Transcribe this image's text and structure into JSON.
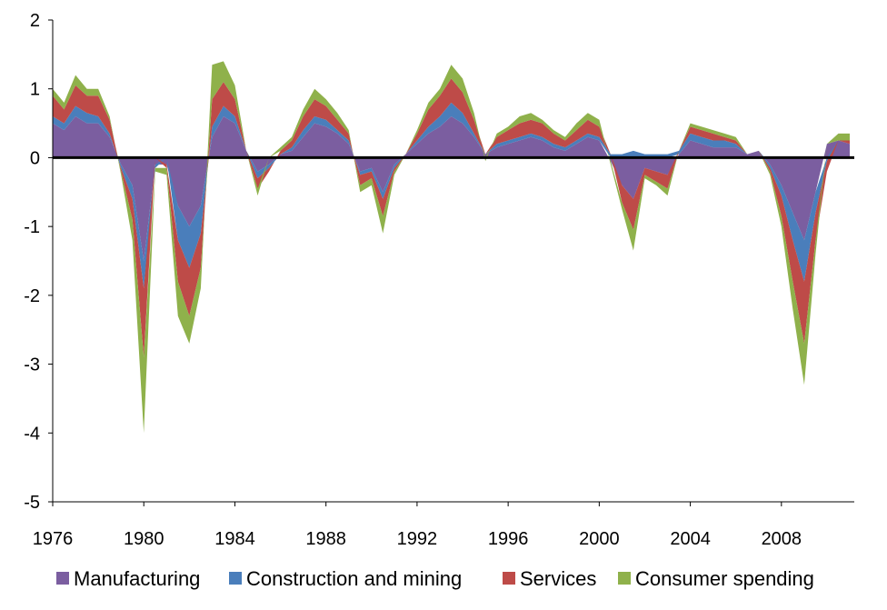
{
  "chart_data": {
    "type": "area",
    "stacked": true,
    "title": "",
    "xlabel": "",
    "ylabel": "",
    "ylim": [
      -5,
      2
    ],
    "xlim": [
      1976,
      2011.2
    ],
    "yticks": [
      "2",
      "1",
      "0",
      "-1",
      "-2",
      "-3",
      "-4",
      "-5"
    ],
    "xticks": [
      "1976",
      "1980",
      "1984",
      "1988",
      "1992",
      "1996",
      "2000",
      "2004",
      "2008"
    ],
    "grid": false,
    "legend_position": "bottom",
    "zero_line": true,
    "x": [
      1976.0,
      1976.5,
      1977.0,
      1977.5,
      1978.0,
      1978.5,
      1979.0,
      1979.5,
      1980.0,
      1980.5,
      1981.0,
      1981.5,
      1982.0,
      1982.5,
      1983.0,
      1983.5,
      1984.0,
      1984.5,
      1985.0,
      1985.5,
      1986.0,
      1986.5,
      1987.0,
      1987.5,
      1988.0,
      1988.5,
      1989.0,
      1989.5,
      1990.0,
      1990.5,
      1991.0,
      1991.5,
      1992.0,
      1992.5,
      1993.0,
      1993.5,
      1994.0,
      1994.5,
      1995.0,
      1995.5,
      1996.0,
      1996.5,
      1997.0,
      1997.5,
      1998.0,
      1998.5,
      1999.0,
      1999.5,
      2000.0,
      2000.5,
      2001.0,
      2001.5,
      2002.0,
      2002.5,
      2003.0,
      2003.5,
      2004.0,
      2004.5,
      2005.0,
      2005.5,
      2006.0,
      2006.5,
      2007.0,
      2007.5,
      2008.0,
      2008.5,
      2009.0,
      2009.5,
      2010.0,
      2010.5,
      2011.0
    ],
    "series": [
      {
        "name": "Manufacturing",
        "color": "#7B5EA0",
        "values": [
          0.5,
          0.4,
          0.6,
          0.5,
          0.5,
          0.3,
          -0.1,
          -0.4,
          -1.5,
          -0.1,
          -0.1,
          -0.7,
          -1.0,
          -0.7,
          0.3,
          0.6,
          0.5,
          0.1,
          -0.2,
          -0.1,
          0.05,
          0.1,
          0.3,
          0.5,
          0.45,
          0.35,
          0.2,
          -0.2,
          -0.15,
          -0.5,
          -0.1,
          0.05,
          0.2,
          0.35,
          0.45,
          0.6,
          0.5,
          0.3,
          0.05,
          0.15,
          0.2,
          0.25,
          0.3,
          0.25,
          0.15,
          0.1,
          0.2,
          0.3,
          0.25,
          -0.05,
          -0.4,
          -0.6,
          -0.15,
          -0.2,
          -0.25,
          0.05,
          0.25,
          0.2,
          0.15,
          0.15,
          0.15,
          0.05,
          0.1,
          -0.1,
          -0.4,
          -0.8,
          -1.2,
          -0.5,
          0.2,
          0.25,
          0.2
        ]
      },
      {
        "name": "Construction and mining",
        "color": "#4A7EBB",
        "values": [
          0.1,
          0.1,
          0.15,
          0.15,
          0.1,
          0.05,
          -0.05,
          -0.2,
          -0.4,
          -0.05,
          0.0,
          -0.5,
          -0.6,
          -0.4,
          0.15,
          0.15,
          0.1,
          0.0,
          -0.1,
          -0.05,
          0.0,
          0.05,
          0.1,
          0.1,
          0.1,
          0.05,
          0.05,
          -0.05,
          -0.05,
          -0.1,
          -0.05,
          0.0,
          0.05,
          0.1,
          0.15,
          0.2,
          0.15,
          0.05,
          0.0,
          0.05,
          0.05,
          0.05,
          0.05,
          0.05,
          0.05,
          0.05,
          0.05,
          0.05,
          0.05,
          0.05,
          0.05,
          0.1,
          0.05,
          0.05,
          0.05,
          0.05,
          0.1,
          0.1,
          0.1,
          0.1,
          0.05,
          0.0,
          0.0,
          -0.05,
          -0.15,
          -0.4,
          -0.6,
          -0.3,
          -0.05,
          0.0,
          0.0
        ]
      },
      {
        "name": "Services",
        "color": "#BE4B48",
        "values": [
          0.3,
          0.2,
          0.3,
          0.25,
          0.3,
          0.2,
          -0.05,
          -0.3,
          -1.0,
          0.0,
          -0.05,
          -0.6,
          -0.7,
          -0.5,
          0.4,
          0.35,
          0.25,
          0.0,
          -0.15,
          -0.05,
          0.05,
          0.1,
          0.2,
          0.25,
          0.2,
          0.15,
          0.1,
          -0.15,
          -0.1,
          -0.25,
          -0.05,
          0.0,
          0.1,
          0.25,
          0.3,
          0.35,
          0.3,
          0.2,
          0.0,
          0.1,
          0.15,
          0.2,
          0.2,
          0.2,
          0.15,
          0.1,
          0.15,
          0.2,
          0.15,
          0.0,
          -0.25,
          -0.45,
          -0.1,
          -0.15,
          -0.2,
          0.0,
          0.1,
          0.1,
          0.1,
          0.05,
          0.05,
          0.0,
          0.0,
          -0.05,
          -0.3,
          -0.6,
          -0.9,
          -0.4,
          -0.15,
          0.0,
          0.05
        ]
      },
      {
        "name": "Consumer spending",
        "color": "#8FB14B",
        "values": [
          0.1,
          0.1,
          0.15,
          0.1,
          0.1,
          0.05,
          -0.05,
          -0.3,
          -1.1,
          -0.05,
          -0.1,
          -0.5,
          -0.4,
          -0.3,
          0.5,
          0.3,
          0.2,
          0.0,
          -0.1,
          0.0,
          0.05,
          0.05,
          0.1,
          0.15,
          0.1,
          0.1,
          0.05,
          -0.1,
          -0.1,
          -0.25,
          -0.05,
          0.0,
          0.05,
          0.1,
          0.1,
          0.2,
          0.2,
          0.1,
          -0.05,
          0.05,
          0.05,
          0.1,
          0.1,
          0.05,
          0.05,
          0.05,
          0.1,
          0.1,
          0.1,
          -0.05,
          -0.1,
          -0.3,
          -0.05,
          -0.05,
          -0.1,
          0.0,
          0.05,
          0.05,
          0.05,
          0.05,
          0.05,
          0.0,
          0.0,
          -0.05,
          -0.15,
          -0.4,
          -0.6,
          -0.2,
          0.0,
          0.1,
          0.1
        ]
      }
    ]
  }
}
